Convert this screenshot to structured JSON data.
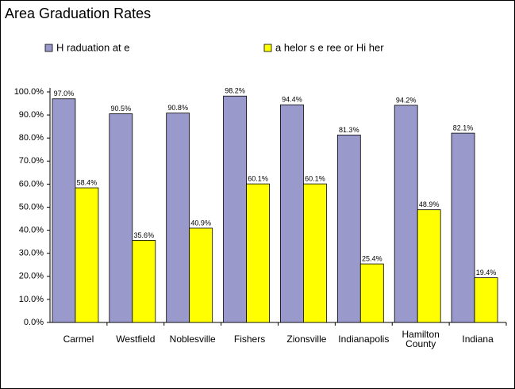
{
  "chart_data": {
    "type": "bar",
    "title": "Area Graduation Rates",
    "categories": [
      "Carmel",
      "Westfield",
      "Noblesville",
      "Fishers",
      "Zionsville",
      "Indianapolis",
      "Hamilton County",
      "Indiana"
    ],
    "series": [
      {
        "name": "H raduation at e",
        "color": "#9999cc",
        "values": [
          97.0,
          90.5,
          90.8,
          98.2,
          94.4,
          81.3,
          94.2,
          82.1
        ],
        "value_labels": [
          "97.0%",
          "90.5%",
          "90.8%",
          "98.2%",
          "94.4%",
          "81.3%",
          "94.2%",
          "82.1%"
        ]
      },
      {
        "name": "a helor s e ree or Hi her",
        "color": "#ffff00",
        "values": [
          58.4,
          35.6,
          40.9,
          60.1,
          60.1,
          25.4,
          48.9,
          19.4
        ],
        "value_labels": [
          "58.4%",
          "35.6%",
          "40.9%",
          "60.1%",
          "60.1%",
          "25.4%",
          "48.9%",
          "19.4%"
        ]
      }
    ],
    "ylim": [
      0,
      100
    ],
    "yticks": [
      {
        "value": 0,
        "label": "0.0%"
      },
      {
        "value": 10,
        "label": "10.0%"
      },
      {
        "value": 20,
        "label": "20.0%"
      },
      {
        "value": 30,
        "label": "30.0%"
      },
      {
        "value": 40,
        "label": "40.0%"
      },
      {
        "value": 50,
        "label": "50.0%"
      },
      {
        "value": 60,
        "label": "60.0%"
      },
      {
        "value": 70,
        "label": "70.0%"
      },
      {
        "value": 80,
        "label": "80.0%"
      },
      {
        "value": 90,
        "label": "90.0%"
      },
      {
        "value": 100,
        "label": "100.0%"
      }
    ],
    "grid": false
  }
}
